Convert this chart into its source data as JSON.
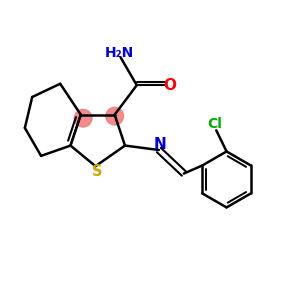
{
  "background_color": "#ffffff",
  "atom_colors": {
    "C": "#000000",
    "N": "#0000cd",
    "O": "#ff0000",
    "S": "#ccaa00",
    "Cl": "#00aa00",
    "H": "#000000"
  },
  "bond_color": "#000000",
  "highlight_color": "#f08080",
  "figsize": [
    3.0,
    3.0
  ],
  "dpi": 100
}
